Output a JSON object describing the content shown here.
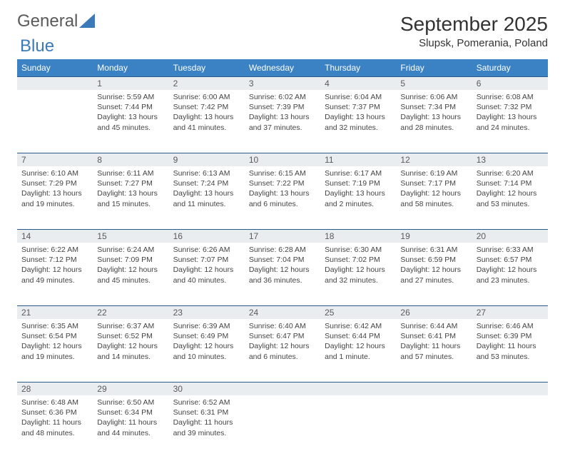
{
  "logo": {
    "word1": "General",
    "word2": "Blue"
  },
  "title": "September 2025",
  "location": "Slupsk, Pomerania, Poland",
  "colors": {
    "header_bg": "#3a82c4",
    "header_text": "#ffffff",
    "daynum_bg": "#e9edf0",
    "daynum_border": "#2a5a8a",
    "body_text": "#444444",
    "logo_gray": "#5a5a5a",
    "logo_blue": "#3a7ab8"
  },
  "weekdays": [
    "Sunday",
    "Monday",
    "Tuesday",
    "Wednesday",
    "Thursday",
    "Friday",
    "Saturday"
  ],
  "weeks": [
    {
      "nums": [
        "",
        "1",
        "2",
        "3",
        "4",
        "5",
        "6"
      ],
      "cells": [
        {
          "sunrise": "",
          "sunset": "",
          "daylight": ""
        },
        {
          "sunrise": "Sunrise: 5:59 AM",
          "sunset": "Sunset: 7:44 PM",
          "daylight": "Daylight: 13 hours and 45 minutes."
        },
        {
          "sunrise": "Sunrise: 6:00 AM",
          "sunset": "Sunset: 7:42 PM",
          "daylight": "Daylight: 13 hours and 41 minutes."
        },
        {
          "sunrise": "Sunrise: 6:02 AM",
          "sunset": "Sunset: 7:39 PM",
          "daylight": "Daylight: 13 hours and 37 minutes."
        },
        {
          "sunrise": "Sunrise: 6:04 AM",
          "sunset": "Sunset: 7:37 PM",
          "daylight": "Daylight: 13 hours and 32 minutes."
        },
        {
          "sunrise": "Sunrise: 6:06 AM",
          "sunset": "Sunset: 7:34 PM",
          "daylight": "Daylight: 13 hours and 28 minutes."
        },
        {
          "sunrise": "Sunrise: 6:08 AM",
          "sunset": "Sunset: 7:32 PM",
          "daylight": "Daylight: 13 hours and 24 minutes."
        }
      ]
    },
    {
      "nums": [
        "7",
        "8",
        "9",
        "10",
        "11",
        "12",
        "13"
      ],
      "cells": [
        {
          "sunrise": "Sunrise: 6:10 AM",
          "sunset": "Sunset: 7:29 PM",
          "daylight": "Daylight: 13 hours and 19 minutes."
        },
        {
          "sunrise": "Sunrise: 6:11 AM",
          "sunset": "Sunset: 7:27 PM",
          "daylight": "Daylight: 13 hours and 15 minutes."
        },
        {
          "sunrise": "Sunrise: 6:13 AM",
          "sunset": "Sunset: 7:24 PM",
          "daylight": "Daylight: 13 hours and 11 minutes."
        },
        {
          "sunrise": "Sunrise: 6:15 AM",
          "sunset": "Sunset: 7:22 PM",
          "daylight": "Daylight: 13 hours and 6 minutes."
        },
        {
          "sunrise": "Sunrise: 6:17 AM",
          "sunset": "Sunset: 7:19 PM",
          "daylight": "Daylight: 13 hours and 2 minutes."
        },
        {
          "sunrise": "Sunrise: 6:19 AM",
          "sunset": "Sunset: 7:17 PM",
          "daylight": "Daylight: 12 hours and 58 minutes."
        },
        {
          "sunrise": "Sunrise: 6:20 AM",
          "sunset": "Sunset: 7:14 PM",
          "daylight": "Daylight: 12 hours and 53 minutes."
        }
      ]
    },
    {
      "nums": [
        "14",
        "15",
        "16",
        "17",
        "18",
        "19",
        "20"
      ],
      "cells": [
        {
          "sunrise": "Sunrise: 6:22 AM",
          "sunset": "Sunset: 7:12 PM",
          "daylight": "Daylight: 12 hours and 49 minutes."
        },
        {
          "sunrise": "Sunrise: 6:24 AM",
          "sunset": "Sunset: 7:09 PM",
          "daylight": "Daylight: 12 hours and 45 minutes."
        },
        {
          "sunrise": "Sunrise: 6:26 AM",
          "sunset": "Sunset: 7:07 PM",
          "daylight": "Daylight: 12 hours and 40 minutes."
        },
        {
          "sunrise": "Sunrise: 6:28 AM",
          "sunset": "Sunset: 7:04 PM",
          "daylight": "Daylight: 12 hours and 36 minutes."
        },
        {
          "sunrise": "Sunrise: 6:30 AM",
          "sunset": "Sunset: 7:02 PM",
          "daylight": "Daylight: 12 hours and 32 minutes."
        },
        {
          "sunrise": "Sunrise: 6:31 AM",
          "sunset": "Sunset: 6:59 PM",
          "daylight": "Daylight: 12 hours and 27 minutes."
        },
        {
          "sunrise": "Sunrise: 6:33 AM",
          "sunset": "Sunset: 6:57 PM",
          "daylight": "Daylight: 12 hours and 23 minutes."
        }
      ]
    },
    {
      "nums": [
        "21",
        "22",
        "23",
        "24",
        "25",
        "26",
        "27"
      ],
      "cells": [
        {
          "sunrise": "Sunrise: 6:35 AM",
          "sunset": "Sunset: 6:54 PM",
          "daylight": "Daylight: 12 hours and 19 minutes."
        },
        {
          "sunrise": "Sunrise: 6:37 AM",
          "sunset": "Sunset: 6:52 PM",
          "daylight": "Daylight: 12 hours and 14 minutes."
        },
        {
          "sunrise": "Sunrise: 6:39 AM",
          "sunset": "Sunset: 6:49 PM",
          "daylight": "Daylight: 12 hours and 10 minutes."
        },
        {
          "sunrise": "Sunrise: 6:40 AM",
          "sunset": "Sunset: 6:47 PM",
          "daylight": "Daylight: 12 hours and 6 minutes."
        },
        {
          "sunrise": "Sunrise: 6:42 AM",
          "sunset": "Sunset: 6:44 PM",
          "daylight": "Daylight: 12 hours and 1 minute."
        },
        {
          "sunrise": "Sunrise: 6:44 AM",
          "sunset": "Sunset: 6:41 PM",
          "daylight": "Daylight: 11 hours and 57 minutes."
        },
        {
          "sunrise": "Sunrise: 6:46 AM",
          "sunset": "Sunset: 6:39 PM",
          "daylight": "Daylight: 11 hours and 53 minutes."
        }
      ]
    },
    {
      "nums": [
        "28",
        "29",
        "30",
        "",
        "",
        "",
        ""
      ],
      "cells": [
        {
          "sunrise": "Sunrise: 6:48 AM",
          "sunset": "Sunset: 6:36 PM",
          "daylight": "Daylight: 11 hours and 48 minutes."
        },
        {
          "sunrise": "Sunrise: 6:50 AM",
          "sunset": "Sunset: 6:34 PM",
          "daylight": "Daylight: 11 hours and 44 minutes."
        },
        {
          "sunrise": "Sunrise: 6:52 AM",
          "sunset": "Sunset: 6:31 PM",
          "daylight": "Daylight: 11 hours and 39 minutes."
        },
        {
          "sunrise": "",
          "sunset": "",
          "daylight": ""
        },
        {
          "sunrise": "",
          "sunset": "",
          "daylight": ""
        },
        {
          "sunrise": "",
          "sunset": "",
          "daylight": ""
        },
        {
          "sunrise": "",
          "sunset": "",
          "daylight": ""
        }
      ]
    }
  ]
}
